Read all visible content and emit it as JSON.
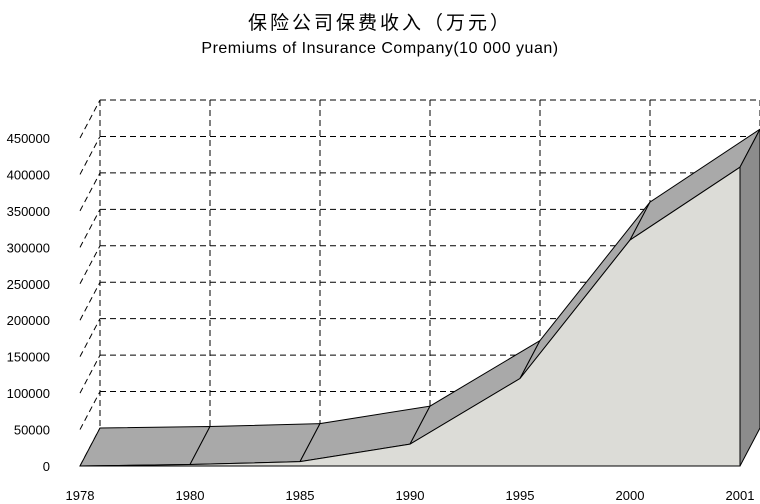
{
  "chart_data": {
    "type": "area",
    "title": "保险公司保费收入（万元）",
    "subtitle": "Premiums of Insurance Company(10 000 yuan)",
    "xlabel": "",
    "ylabel": "",
    "x": [
      "1978",
      "1980",
      "1985",
      "1990",
      "1995",
      "2000",
      "2001"
    ],
    "values": [
      0,
      2000,
      6000,
      30000,
      120000,
      310000,
      410000
    ],
    "ylim": [
      0,
      450000
    ],
    "yticks": [
      "0",
      "50000",
      "100000",
      "150000",
      "200000",
      "250000",
      "300000",
      "350000",
      "400000",
      "450000"
    ],
    "grid": true,
    "legend": "none",
    "colors": {
      "fill": "#dcdcd7",
      "top": "#a9a9a9",
      "side": "#8c8c8c",
      "stroke": "#000000"
    }
  }
}
